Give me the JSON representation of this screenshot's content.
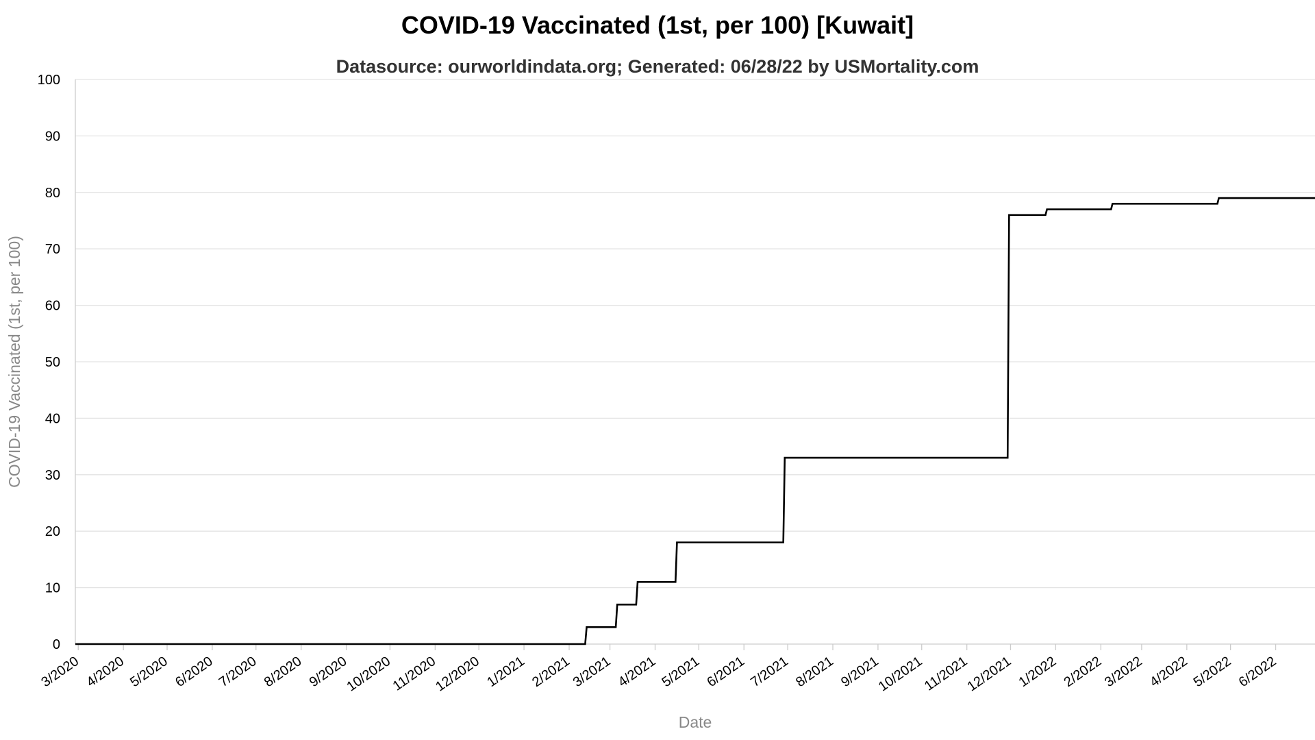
{
  "chart_data": {
    "type": "line",
    "title": "COVID-19 Vaccinated (1st, per 100) [Kuwait]",
    "subtitle": "Datasource: ourworldindata.org; Generated: 06/28/22 by USMortality.com",
    "xlabel": "Date",
    "ylabel": "COVID-19 Vaccinated (1st, per 100)",
    "ylim": [
      0,
      100
    ],
    "yticks": [
      0,
      10,
      20,
      30,
      40,
      50,
      60,
      70,
      80,
      90,
      100
    ],
    "xlim": [
      "2020-02-28",
      "2022-06-28"
    ],
    "x_tick_dates": [
      "2020-03-01",
      "2020-04-01",
      "2020-05-01",
      "2020-06-01",
      "2020-07-01",
      "2020-08-01",
      "2020-09-01",
      "2020-10-01",
      "2020-11-01",
      "2020-12-01",
      "2021-01-01",
      "2021-02-01",
      "2021-03-01",
      "2021-04-01",
      "2021-05-01",
      "2021-06-01",
      "2021-07-01",
      "2021-08-01",
      "2021-09-01",
      "2021-10-01",
      "2021-11-01",
      "2021-12-01",
      "2022-01-01",
      "2022-02-01",
      "2022-03-01",
      "2022-04-01",
      "2022-05-01",
      "2022-06-01"
    ],
    "x_tick_labels": [
      "3/2020",
      "4/2020",
      "5/2020",
      "6/2020",
      "7/2020",
      "8/2020",
      "9/2020",
      "10/2020",
      "11/2020",
      "12/2020",
      "1/2021",
      "2/2021",
      "3/2021",
      "4/2021",
      "5/2021",
      "6/2021",
      "7/2021",
      "8/2021",
      "9/2021",
      "10/2021",
      "11/2021",
      "12/2021",
      "1/2022",
      "2/2022",
      "3/2022",
      "4/2022",
      "5/2022",
      "6/2022"
    ],
    "grid": true,
    "series": [
      {
        "color": "#000000",
        "points": [
          [
            "2020-02-28",
            0
          ],
          [
            "2021-02-12",
            0
          ],
          [
            "2021-02-13",
            3
          ],
          [
            "2021-03-05",
            3
          ],
          [
            "2021-03-06",
            7
          ],
          [
            "2021-03-19",
            7
          ],
          [
            "2021-03-20",
            11
          ],
          [
            "2021-04-15",
            11
          ],
          [
            "2021-04-16",
            18
          ],
          [
            "2021-06-28",
            18
          ],
          [
            "2021-06-29",
            33
          ],
          [
            "2021-11-29",
            33
          ],
          [
            "2021-11-30",
            76
          ],
          [
            "2021-12-25",
            76
          ],
          [
            "2021-12-26",
            77
          ],
          [
            "2022-02-08",
            77
          ],
          [
            "2022-02-09",
            78
          ],
          [
            "2022-04-22",
            78
          ],
          [
            "2022-04-23",
            79
          ],
          [
            "2022-06-28",
            79
          ]
        ]
      }
    ]
  }
}
